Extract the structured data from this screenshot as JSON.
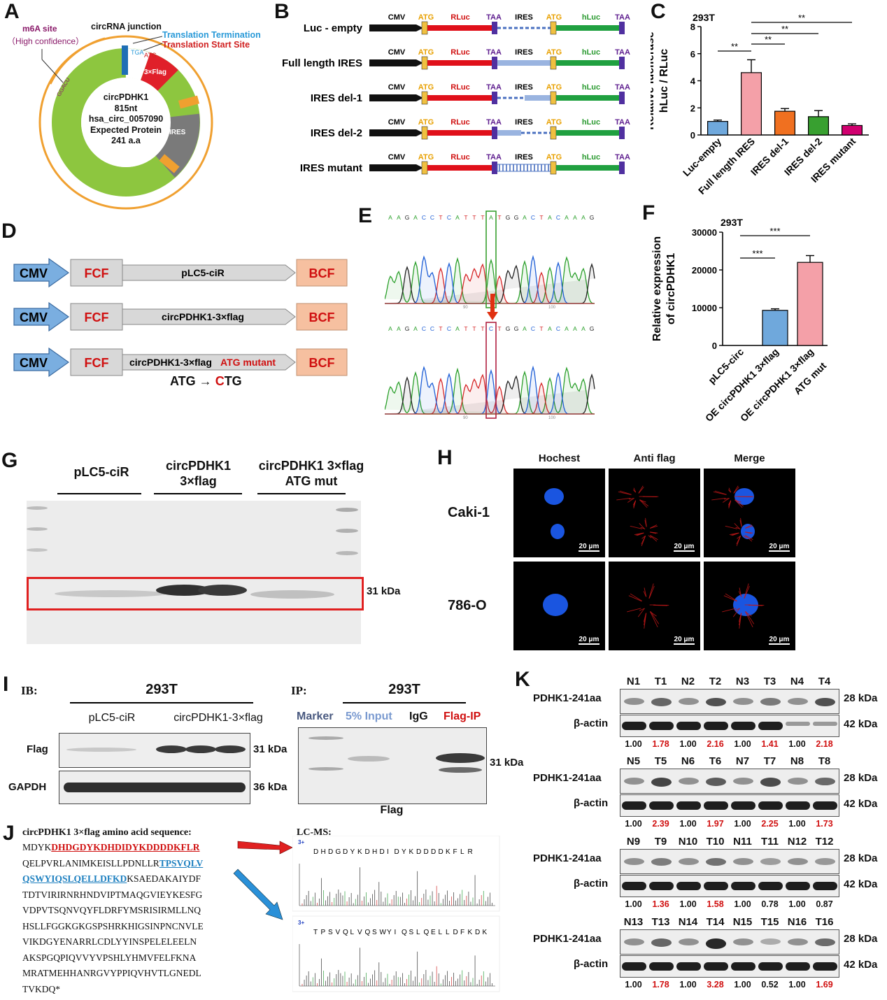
{
  "panels": {
    "A": "A",
    "B": "B",
    "C": "C",
    "D": "D",
    "E": "E",
    "F": "F",
    "G": "G",
    "H": "H",
    "I": "I",
    "J": "J",
    "K": "K"
  },
  "panelA": {
    "m6a_line1": "m6A site",
    "m6a_line2": "（High confidence）",
    "junction": "circRNA junction",
    "termination": "Translation Termination",
    "start": "Translation Start Site",
    "tga": "TGA",
    "atg": "ATG",
    "ggacu": "GGACU",
    "flag": "3×Flag",
    "ires": "IRES",
    "center_name": "circPDHK1",
    "center_len": "815nt",
    "center_id": "hsa_circ_0057090",
    "center_prot": "Expected Protein",
    "center_aa": "241 a.a"
  },
  "panelB": {
    "labels": {
      "cmv": "CMV",
      "atg": "ATG",
      "rluc": "RLuc",
      "taa": "TAA",
      "ires": "IRES",
      "hluc": "hLuc"
    },
    "rows": [
      "Luc - empty",
      "Full length IRES",
      "IRES del-1",
      "IRES del-2",
      "IRES mutant"
    ]
  },
  "panelC": {
    "cell": "293T",
    "ylabel1": "Relative luciferase",
    "ylabel2": "hLuc / RLuc",
    "sig": "**",
    "colors": [
      "#6fa8dc",
      "#f4a0a8",
      "#f07020",
      "#38a030",
      "#d0006f"
    ],
    "chart_data": {
      "type": "bar",
      "categories": [
        "Luc-empty",
        "Full length IRES",
        "IRES del-1",
        "IRES del-2",
        "IRES mutant"
      ],
      "values": [
        1.0,
        4.6,
        1.75,
        1.35,
        0.7
      ],
      "errors": [
        0.1,
        0.95,
        0.2,
        0.45,
        0.12
      ],
      "ylim": [
        0,
        8
      ],
      "yticks": [
        0,
        2,
        4,
        6,
        8
      ]
    }
  },
  "panelD": {
    "cmv": "CMV",
    "fcf": "FCF",
    "bcf": "BCF",
    "rows": [
      "pLC5-ciR",
      "circPDHK1-3×flag",
      "circPDHK1-3×flag"
    ],
    "mutant": "ATG mutant",
    "arrow_a": "ATG →",
    "arrow_c": "C",
    "arrow_tg": "TG"
  },
  "panelE": {
    "seq_top": [
      "A",
      "A",
      "G",
      "A",
      "C",
      "C",
      "T",
      "C",
      "A",
      "T",
      "T",
      "T",
      "A",
      "T",
      "G",
      "G",
      "A",
      "C",
      "T",
      "A",
      "C",
      "A",
      "A",
      "A",
      "G"
    ],
    "seq_bot": [
      "A",
      "A",
      "G",
      "A",
      "C",
      "C",
      "T",
      "C",
      "A",
      "T",
      "T",
      "T",
      "C",
      "T",
      "G",
      "G",
      "A",
      "C",
      "T",
      "A",
      "C",
      "A",
      "A",
      "A",
      "G"
    ],
    "tick1": "90",
    "tick2": "100"
  },
  "panelF": {
    "cell": "293T",
    "ylabel1": "Relative expression",
    "ylabel2": "of circPDHK1",
    "sig": "***",
    "colors": [
      "#6fa8dc",
      "#6fa8dc",
      "#f4a0a8"
    ],
    "xlabels": [
      "pLC5-circ",
      "OE circPDHK1 3×flag",
      "OE circPDHK1 3×flag",
      "ATG mut"
    ],
    "chart_data": {
      "type": "bar",
      "categories": [
        "pLC5-circ",
        "OE circPDHK1 3×flag",
        "OE circPDHK1 3×flag ATG mut"
      ],
      "values": [
        0,
        9300,
        22000
      ],
      "errors": [
        0,
        400,
        1800
      ],
      "ylim": [
        0,
        30000
      ],
      "yticks": [
        0,
        10000,
        20000,
        30000
      ]
    }
  },
  "panelG": {
    "lane1": "pLC5-ciR",
    "lane2a": "circPDHK1",
    "lane2b": "3×flag",
    "lane3a": "circPDHK1 3×flag",
    "lane3b": "ATG mut",
    "kda": "31 kDa"
  },
  "panelH": {
    "cols": [
      "Hochest",
      "Anti flag",
      "Merge"
    ],
    "rows": [
      "Caki-1",
      "786-O"
    ],
    "scale": "20 μm"
  },
  "panelI": {
    "ib": "IB:",
    "ip": "IP:",
    "cell": "293T",
    "lane1": "pLC5-ciR",
    "lane2": "circPDHK1-3×flag",
    "flag": "Flag",
    "gapdh": "GAPDH",
    "kda31": "31 kDa",
    "kda36": "36 kDa",
    "marker": "Marker",
    "input": "5% Input",
    "igg": "IgG",
    "flagip": "Flag-IP",
    "colors": {
      "marker": "#4a5a80",
      "input": "#7a9ad0",
      "flagip": "#d01010"
    }
  },
  "panelJ": {
    "title": "circPDHK1 3×flag amino acid sequence:",
    "l1a": "MDYK",
    "l1b": "DHDGDYKDHDIDYKDDDDKFLR",
    "l2a": "QELPVRLANIMKEISLLPDNLLR",
    "l2b": "TPSVQLV",
    "l3a": "QSWYIQSLQELLDFKD",
    "l3b": "KSAEDAKAIYDF",
    "lines": [
      "TDTVIRIRNRHNDVIPTMAQGVIEYKESFG",
      "VDPVTSQNVQYFLDRFYMSRISIRMLLNQ",
      "HSLLFGGKGKGSPSHRKHIGSINPNCNVLE",
      "VIKDGYENARRLCDLYYINSPELELEELN",
      "AKSPGQPIQVVYVPSHLYHMVFELFKNA",
      "MRATMEHHANRGVYPPIQVHVTLGNEDL",
      "TVKDQ*"
    ],
    "lcms": "LC-MS:",
    "spec1": [
      "D",
      "H",
      "D",
      "G",
      "D",
      "Y",
      "K",
      "D",
      "H",
      "D",
      "I",
      "D",
      "Y",
      "K",
      "D",
      "D",
      "D",
      "D",
      "K",
      "F",
      "L",
      "R"
    ],
    "spec2": [
      "T",
      "P",
      "S",
      "V",
      "Q",
      "L",
      "V",
      "Q",
      "S",
      "W",
      "Y",
      "I",
      "Q",
      "S",
      "L",
      "Q",
      "E",
      "L",
      "L",
      "D",
      "F",
      "K",
      "D",
      "K"
    ],
    "charge": "3+"
  },
  "panelK": {
    "pdhk": "PDHK1-241aa",
    "actin": "β-actin",
    "kda28": "28 kDa",
    "kda42": "42 kDa",
    "groups": [
      {
        "lanes": [
          "N1",
          "T1",
          "N2",
          "T2",
          "N3",
          "T3",
          "N4",
          "T4"
        ],
        "vals": [
          "1.00",
          "1.78",
          "1.00",
          "2.16",
          "1.00",
          "1.41",
          "1.00",
          "2.18"
        ],
        "red": [
          1,
          3,
          5,
          7
        ]
      },
      {
        "lanes": [
          "N5",
          "T5",
          "N6",
          "T6",
          "N7",
          "T7",
          "N8",
          "T8"
        ],
        "vals": [
          "1.00",
          "2.39",
          "1.00",
          "1.97",
          "1.00",
          "2.25",
          "1.00",
          "1.73"
        ],
        "red": [
          1,
          3,
          5,
          7
        ]
      },
      {
        "lanes": [
          "N9",
          "T9",
          "N10",
          "T10",
          "N11",
          "T11",
          "N12",
          "T12"
        ],
        "vals": [
          "1.00",
          "1.36",
          "1.00",
          "1.58",
          "1.00",
          "0.78",
          "1.00",
          "0.87"
        ],
        "red": [
          1,
          3
        ]
      },
      {
        "lanes": [
          "N13",
          "T13",
          "N14",
          "T14",
          "N15",
          "T15",
          "N16",
          "T16"
        ],
        "vals": [
          "1.00",
          "1.78",
          "1.00",
          "3.28",
          "1.00",
          "0.52",
          "1.00",
          "1.69"
        ],
        "red": [
          1,
          3,
          7
        ]
      }
    ]
  }
}
